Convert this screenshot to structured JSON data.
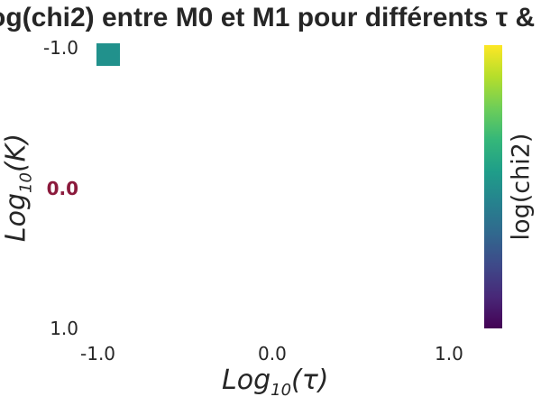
{
  "chart_data": {
    "type": "heatmap",
    "title": "og(chi2) entre M0 et M1 pour différents τ & ",
    "xlabel": {
      "prefix": "Log",
      "sub": "10",
      "suffix": "(τ)"
    },
    "ylabel": {
      "prefix": "Log",
      "sub": "10",
      "suffix": "(K)"
    },
    "x_ticks": [
      "-1.0",
      "0.0",
      "1.0"
    ],
    "y_ticks": [
      "-1.0",
      "0.0",
      "1.0"
    ],
    "highlighted_y_tick": "0.0",
    "xlim": [
      -1.0,
      1.0
    ],
    "ylim": [
      -1.0,
      1.0
    ],
    "y_inverted": true,
    "cells": [
      {
        "x": -1.0,
        "y": -1.0,
        "color": "#21918c"
      }
    ],
    "colorbar": {
      "label": "log(chi2)",
      "colormap": "viridis",
      "colors": [
        "#440154",
        "#482878",
        "#3e4989",
        "#31688e",
        "#26828e",
        "#1f9e89",
        "#35b779",
        "#6ece58",
        "#b5de2b",
        "#fde725"
      ]
    },
    "grid": false
  }
}
